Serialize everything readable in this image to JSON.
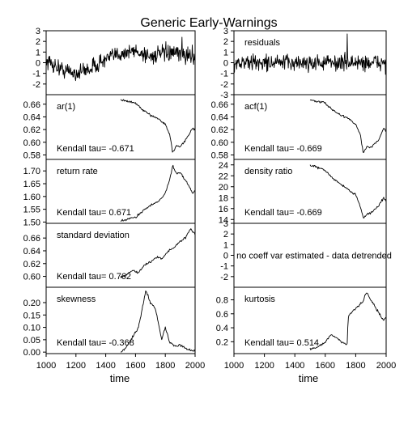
{
  "figure": {
    "title": "Generic Early-Warnings",
    "xlabel": "time",
    "x_range": [
      1000,
      2000
    ],
    "x_ticks": [
      "1000",
      "1200",
      "1400",
      "1600",
      "1800",
      "2000"
    ]
  },
  "chart_data": [
    {
      "id": "series",
      "type": "line",
      "label": "",
      "xlim": [
        1000,
        2000
      ],
      "ylim": [
        -3,
        3
      ],
      "y_ticks": [
        -2,
        -1,
        0,
        1,
        2,
        3
      ],
      "y_tick_labels": [
        "-2",
        "-1",
        "0",
        "1",
        "2",
        "3"
      ],
      "x": [
        1000,
        1100,
        1200,
        1300,
        1400,
        1500,
        1600,
        1700,
        1800,
        1900,
        2000
      ],
      "y": [
        0.2,
        -0.6,
        -1.0,
        -0.5,
        0.3,
        0.9,
        1.1,
        0.6,
        0.9,
        0.8,
        0.6
      ],
      "tau": ""
    },
    {
      "id": "residuals",
      "type": "line",
      "label": "residuals",
      "xlim": [
        1000,
        2000
      ],
      "ylim": [
        -3,
        3
      ],
      "y_ticks": [
        -3,
        -2,
        -1,
        0,
        1,
        2,
        3
      ],
      "y_tick_labels": [
        "-3",
        "-2",
        "-1",
        "0",
        "1",
        "2",
        "3"
      ],
      "x": [
        1000,
        1200,
        1400,
        1600,
        1800,
        2000
      ],
      "y": [
        0,
        0,
        0,
        0,
        0,
        0
      ],
      "tau": ""
    },
    {
      "id": "ar1",
      "type": "line",
      "label": "ar(1)",
      "xlim": [
        1000,
        2000
      ],
      "ylim": [
        0.573,
        0.675
      ],
      "y_ticks": [
        0.58,
        0.6,
        0.62,
        0.64,
        0.66
      ],
      "y_tick_labels": [
        "0.58",
        "0.60",
        "0.62",
        "0.64",
        "0.66"
      ],
      "x": [
        1500,
        1550,
        1600,
        1650,
        1700,
        1750,
        1800,
        1830,
        1850,
        1875,
        1900,
        1950,
        1985,
        2000
      ],
      "y": [
        0.667,
        0.664,
        0.662,
        0.65,
        0.643,
        0.638,
        0.628,
        0.612,
        0.583,
        0.595,
        0.592,
        0.608,
        0.623,
        0.619
      ],
      "tau": "Kendall tau= -0.671"
    },
    {
      "id": "acf1",
      "type": "line",
      "label": "acf(1)",
      "xlim": [
        1000,
        2000
      ],
      "ylim": [
        0.573,
        0.675
      ],
      "y_ticks": [
        0.58,
        0.6,
        0.62,
        0.64,
        0.66
      ],
      "y_tick_labels": [
        "0.58",
        "0.60",
        "0.62",
        "0.64",
        "0.66"
      ],
      "x": [
        1500,
        1550,
        1600,
        1650,
        1700,
        1750,
        1800,
        1830,
        1850,
        1875,
        1900,
        1950,
        1985,
        2000
      ],
      "y": [
        0.667,
        0.664,
        0.662,
        0.65,
        0.643,
        0.638,
        0.628,
        0.612,
        0.583,
        0.593,
        0.592,
        0.603,
        0.622,
        0.617
      ],
      "tau": "Kendall tau= -0.669"
    },
    {
      "id": "return-rate",
      "type": "line",
      "label": "return rate",
      "xlim": [
        1000,
        2000
      ],
      "ylim": [
        1.495,
        1.745
      ],
      "y_ticks": [
        1.5,
        1.55,
        1.6,
        1.65,
        1.7
      ],
      "y_tick_labels": [
        "1.50",
        "1.55",
        "1.60",
        "1.65",
        "1.70"
      ],
      "x": [
        1500,
        1550,
        1600,
        1650,
        1700,
        1750,
        1800,
        1830,
        1850,
        1875,
        1900,
        1950,
        1985,
        2000
      ],
      "y": [
        1.503,
        1.512,
        1.518,
        1.545,
        1.565,
        1.58,
        1.612,
        1.667,
        1.72,
        1.69,
        1.695,
        1.65,
        1.61,
        1.625
      ],
      "tau": "Kendall tau= 0.671"
    },
    {
      "id": "density-ratio",
      "type": "line",
      "label": "density ratio",
      "xlim": [
        1000,
        2000
      ],
      "ylim": [
        13.3,
        25.0
      ],
      "y_ticks": [
        14,
        16,
        18,
        20,
        22,
        24
      ],
      "y_tick_labels": [
        "14",
        "16",
        "18",
        "20",
        "22",
        "24"
      ],
      "x": [
        1500,
        1550,
        1600,
        1650,
        1700,
        1750,
        1800,
        1830,
        1850,
        1875,
        1900,
        1950,
        1985,
        2000
      ],
      "y": [
        24.0,
        23.5,
        23.0,
        21.5,
        20.5,
        19.5,
        18.5,
        16.5,
        14.2,
        15.0,
        15.2,
        16.5,
        18.0,
        17.2
      ],
      "tau": "Kendall tau= -0.669"
    },
    {
      "id": "standard-deviation",
      "type": "line",
      "label": "standard deviation",
      "xlim": [
        1000,
        2000
      ],
      "ylim": [
        0.583,
        0.683
      ],
      "y_ticks": [
        0.6,
        0.62,
        0.64,
        0.66
      ],
      "y_tick_labels": [
        "0.60",
        "0.62",
        "0.64",
        "0.66"
      ],
      "x": [
        1500,
        1540,
        1580,
        1620,
        1660,
        1700,
        1740,
        1780,
        1820,
        1860,
        1900,
        1940,
        1970,
        2000
      ],
      "y": [
        0.598,
        0.603,
        0.61,
        0.605,
        0.618,
        0.622,
        0.63,
        0.628,
        0.64,
        0.645,
        0.655,
        0.662,
        0.675,
        0.665
      ],
      "tau": "Kendall tau= 0.762"
    },
    {
      "id": "coeff-var",
      "type": "line",
      "label": "",
      "xlim": [
        1000,
        2000
      ],
      "ylim": [
        -3,
        3
      ],
      "y_ticks": [
        -2,
        -1,
        0,
        1,
        2,
        3
      ],
      "y_tick_labels": [
        "-2",
        "-1",
        "0",
        "1",
        "2",
        "3"
      ],
      "x": [],
      "y": [],
      "tau": "",
      "note": "no coeff var estimated - data detrended"
    },
    {
      "id": "skewness",
      "type": "line",
      "label": "skewness",
      "xlim": [
        1000,
        2000
      ],
      "ylim": [
        -0.006,
        0.262
      ],
      "y_ticks": [
        0.0,
        0.05,
        0.1,
        0.15,
        0.2
      ],
      "y_tick_labels": [
        "0.00",
        "0.05",
        "0.10",
        "0.15",
        "0.20"
      ],
      "x": [
        1500,
        1540,
        1580,
        1620,
        1650,
        1670,
        1700,
        1730,
        1750,
        1775,
        1800,
        1830,
        1870,
        1900,
        1950,
        2000
      ],
      "y": [
        0.0,
        0.02,
        0.06,
        0.1,
        0.19,
        0.25,
        0.2,
        0.18,
        0.13,
        0.05,
        0.1,
        0.04,
        0.02,
        0.03,
        0.01,
        0.005
      ],
      "tau": "Kendall tau= -0.368"
    },
    {
      "id": "kurtosis",
      "type": "line",
      "label": "kurtosis",
      "xlim": [
        1000,
        2000
      ],
      "ylim": [
        0.03,
        0.98
      ],
      "y_ticks": [
        0.2,
        0.4,
        0.6,
        0.8
      ],
      "y_tick_labels": [
        "0.2",
        "0.4",
        "0.6",
        "0.8"
      ],
      "x": [
        1500,
        1550,
        1600,
        1640,
        1680,
        1720,
        1745,
        1750,
        1800,
        1850,
        1870,
        1900,
        1950,
        1985,
        2000
      ],
      "y": [
        0.1,
        0.12,
        0.2,
        0.3,
        0.25,
        0.18,
        0.16,
        0.56,
        0.68,
        0.78,
        0.92,
        0.8,
        0.62,
        0.5,
        0.56
      ],
      "tau": "Kendall tau= 0.514"
    }
  ]
}
